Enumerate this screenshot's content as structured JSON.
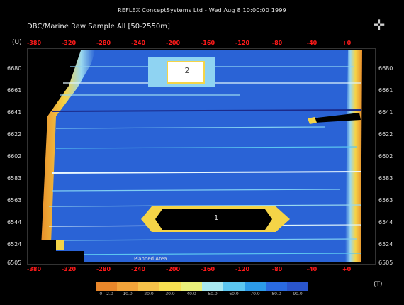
{
  "header": {
    "title": "REFLEX ConceptSystems Ltd - Wed Aug 8 10:00:00 1999",
    "subtitle": "DBC/Marine Raw Sample All [50-2550m]"
  },
  "axes": {
    "y_unit": "(U)",
    "x_unit": "(T)",
    "x_ticks": [
      "-380",
      "-320",
      "-280",
      "-240",
      "-200",
      "-160",
      "-120",
      "-80",
      "-40",
      "+0"
    ],
    "y_ticks": [
      "6680",
      "6661",
      "6641",
      "6622",
      "6602",
      "6583",
      "6563",
      "6544",
      "6524",
      "6505"
    ]
  },
  "plot": {
    "box_labels": [
      "2",
      "1"
    ],
    "area_label": "Planned Area"
  },
  "colorbar": {
    "labels": [
      "0 - 2.0",
      "10.0",
      "20.0",
      "30.0",
      "40.0",
      "50.0",
      "60.0",
      "70.0",
      "80.0",
      "90.0"
    ],
    "colors": [
      "#e8862a",
      "#f2a33a",
      "#f6c14a",
      "#f7df52",
      "#e9f07a",
      "#a8e8f0",
      "#5cc6f0",
      "#2c9ae8",
      "#2a6ae0",
      "#2a55cc"
    ]
  },
  "colors": {
    "data_fill": "#2a63d6",
    "edge_yellow": "#f5d447",
    "edge_orange": "#e88c2a",
    "tick_red": "#ff1a1a"
  }
}
